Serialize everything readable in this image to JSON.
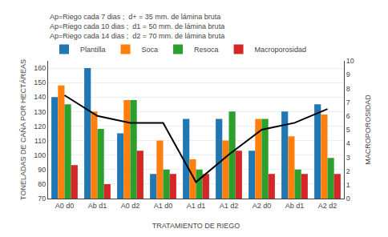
{
  "chart_data": {
    "type": "bar",
    "categories": [
      "A0 d0",
      "Ab d1",
      "A0 d2",
      "A1 d0",
      "A1 d1",
      "A1 d2",
      "A2 d0",
      "Ab d1",
      "A2 d2"
    ],
    "series": [
      {
        "name": "Plantilla",
        "values": [
          140,
          160,
          115,
          87,
          125,
          125,
          103,
          130,
          135
        ]
      },
      {
        "name": "Soca",
        "values": [
          148,
          130,
          138,
          110,
          97,
          110,
          125,
          113,
          128
        ]
      },
      {
        "name": "Resoca",
        "values": [
          135,
          118,
          138,
          90,
          90,
          130,
          125,
          90,
          98
        ]
      },
      {
        "name": "Macroporosidad",
        "values": [
          93,
          80,
          103,
          87,
          87,
          103,
          87,
          87,
          87
        ]
      },
      {
        "type": "line",
        "axis": "y2",
        "color": "black",
        "values": [
          7.5,
          6.0,
          5.5,
          5.5,
          1.2,
          3.2,
          5.0,
          5.5,
          6.5
        ]
      }
    ],
    "xlabel": "TRATAMIENTO DE RIEGO",
    "ylabel": "TONELADAS DE CAÑA POR HECTÁREAS",
    "y2label": "MACROPOROSIDAD",
    "ylim": [
      70,
      165
    ],
    "yticks": [
      70,
      80,
      90,
      100,
      110,
      120,
      130,
      140,
      150,
      160
    ],
    "y2lim": [
      0,
      10
    ],
    "y2ticks": [
      0,
      1,
      2,
      3,
      4,
      5,
      6,
      7,
      8,
      9,
      10
    ],
    "annotations": [
      "Ap=Riego cada 7 dias ;  d+ = 35 mm. de lámina bruta",
      "Ap=Riego cada 10 dias ;  d1 = 50 mm. de lámina bruta",
      "Ap=Riego cada 14 dias ;  d2 = 70 mm. de lámina bruta"
    ],
    "grid": true,
    "legend": "upper left"
  }
}
